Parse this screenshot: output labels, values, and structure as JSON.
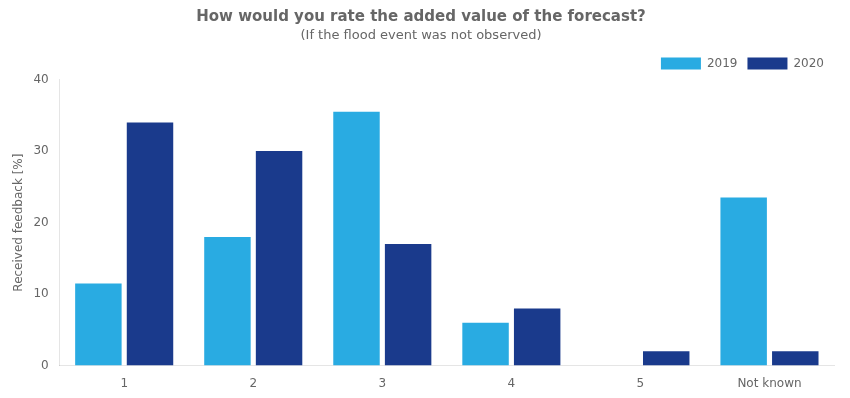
{
  "chart_data": {
    "type": "bar",
    "title": "How would you rate the added value of the forecast?",
    "subtitle": "(If the flood event was not observed)",
    "categories": [
      "1",
      "2",
      "3",
      "4",
      "5",
      "Not known"
    ],
    "series": [
      {
        "name": "2019",
        "color": "#29ABE2",
        "values": [
          11.5,
          18.0,
          35.5,
          6.0,
          0.0,
          23.5
        ]
      },
      {
        "name": "2020",
        "color": "#1A3A8C",
        "values": [
          34.0,
          30.0,
          17.0,
          8.0,
          2.0,
          2.0
        ]
      }
    ],
    "ylabel": "Received feedback [%]",
    "ylim": [
      0,
      40
    ],
    "yticks": [
      0,
      10,
      20,
      30,
      40
    ],
    "grid": false,
    "legend": "upper right"
  }
}
